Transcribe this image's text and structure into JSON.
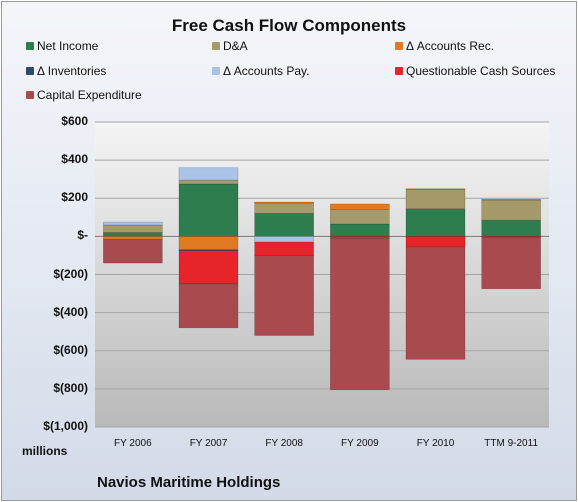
{
  "chart_data": {
    "type": "bar",
    "stacked": true,
    "title": "Free Cash Flow Components",
    "units_label": "millions",
    "company": "Navios Maritime Holdings",
    "categories": [
      "FY 2006",
      "FY 2007",
      "FY 2008",
      "FY 2009",
      "FY 2010",
      "TTM 9-2011"
    ],
    "ylim": [
      -1000,
      600
    ],
    "yticks": [
      {
        "value": 600,
        "label": "$600"
      },
      {
        "value": 400,
        "label": "$400"
      },
      {
        "value": 200,
        "label": "$200"
      },
      {
        "value": 0,
        "label": "$-"
      },
      {
        "value": -200,
        "label": "$(200)"
      },
      {
        "value": -400,
        "label": "$(400)"
      },
      {
        "value": -600,
        "label": "$(600)"
      },
      {
        "value": -800,
        "label": "$(800)"
      },
      {
        "value": -1000,
        "label": "$(1,000)"
      }
    ],
    "grid": true,
    "legend_placement": "top",
    "series": [
      {
        "name": "Net Income",
        "color": "#2e7d4f",
        "values": [
          20,
          275,
          120,
          65,
          145,
          85
        ]
      },
      {
        "name": "D&A",
        "color": "#a49a6a",
        "values": [
          40,
          20,
          55,
          75,
          100,
          105
        ]
      },
      {
        "name": "Δ Accounts Rec.",
        "color": "#e07b22",
        "values": [
          -15,
          -70,
          5,
          30,
          5,
          5
        ]
      },
      {
        "name": "Δ Inventories",
        "color": "#2f4a66",
        "values": [
          0,
          -5,
          0,
          0,
          0,
          0
        ]
      },
      {
        "name": "Δ Accounts Pay.",
        "color": "#a9c3e6",
        "values": [
          15,
          65,
          -30,
          0,
          0,
          0
        ]
      },
      {
        "name": "Questionable Cash Sources",
        "color": "#e62429",
        "values": [
          0,
          -175,
          -70,
          -10,
          -55,
          -5
        ]
      },
      {
        "name": "Capital Expenditure",
        "color": "#a84a4e",
        "values": [
          -125,
          -230,
          -420,
          -795,
          -590,
          -270
        ]
      }
    ]
  }
}
